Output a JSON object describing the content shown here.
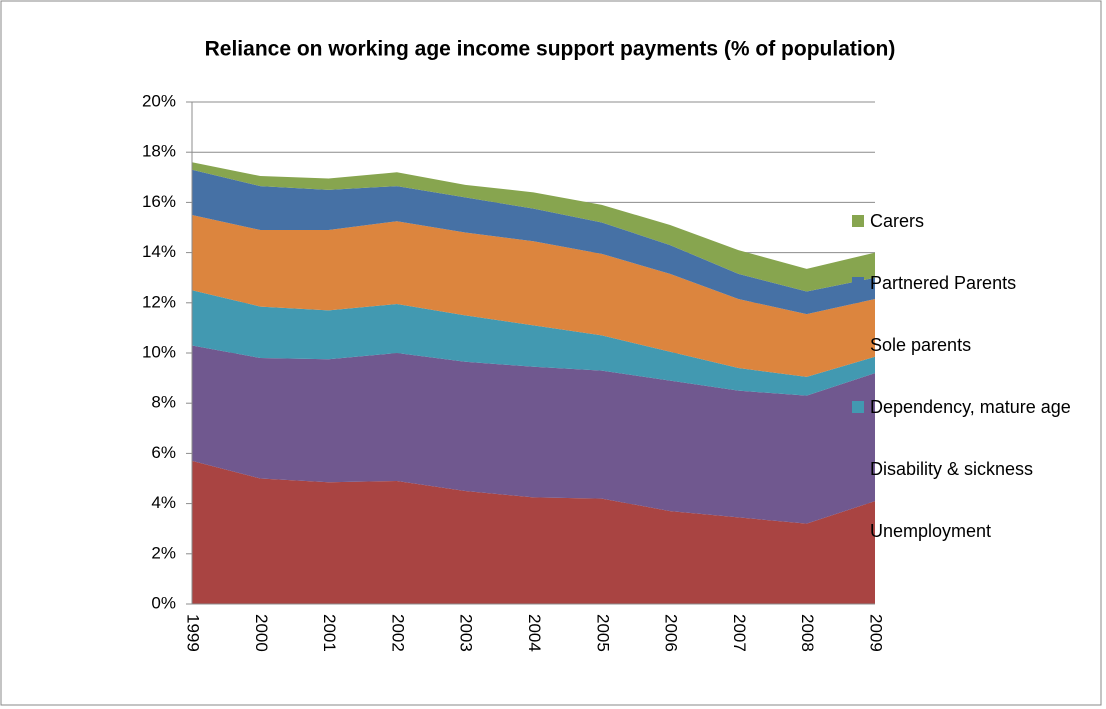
{
  "chart_data": {
    "type": "stacked-area",
    "title": "Reliance on working age income support payments (% of population)",
    "categories": [
      "1999",
      "2000",
      "2001",
      "2002",
      "2003",
      "2004",
      "2005",
      "2006",
      "2007",
      "2008",
      "2009"
    ],
    "series": [
      {
        "name": "Unemployment",
        "color": "#a94442",
        "values": [
          5.7,
          5.0,
          4.85,
          4.9,
          4.5,
          4.25,
          4.2,
          3.7,
          3.45,
          3.2,
          4.1
        ]
      },
      {
        "name": "Disability & sickness",
        "color": "#70588f",
        "values": [
          4.6,
          4.8,
          4.9,
          5.1,
          5.15,
          5.2,
          5.1,
          5.2,
          5.05,
          5.1,
          5.1
        ]
      },
      {
        "name": "Dependency, mature age",
        "color": "#4299b1",
        "values": [
          2.2,
          2.05,
          1.95,
          1.95,
          1.85,
          1.65,
          1.4,
          1.15,
          0.9,
          0.75,
          0.65
        ]
      },
      {
        "name": "Sole parents",
        "color": "#dc853e",
        "values": [
          3.0,
          3.05,
          3.2,
          3.3,
          3.3,
          3.35,
          3.25,
          3.1,
          2.75,
          2.5,
          2.3
        ]
      },
      {
        "name": "Partnered Parents",
        "color": "#4671a5",
        "values": [
          1.8,
          1.75,
          1.6,
          1.4,
          1.4,
          1.3,
          1.25,
          1.15,
          1.0,
          0.9,
          0.85
        ]
      },
      {
        "name": "Carers",
        "color": "#87a54f",
        "values": [
          0.3,
          0.4,
          0.45,
          0.55,
          0.5,
          0.65,
          0.7,
          0.8,
          0.95,
          0.9,
          1.0
        ]
      }
    ],
    "ylim": [
      0,
      20
    ],
    "yticks": [
      {
        "value": 0,
        "label": "0%"
      },
      {
        "value": 2,
        "label": "2%"
      },
      {
        "value": 4,
        "label": "4%"
      },
      {
        "value": 6,
        "label": "6%"
      },
      {
        "value": 8,
        "label": "8%"
      },
      {
        "value": 10,
        "label": "10%"
      },
      {
        "value": 12,
        "label": "12%"
      },
      {
        "value": 14,
        "label": "14%"
      },
      {
        "value": 16,
        "label": "16%"
      },
      {
        "value": 18,
        "label": "18%"
      },
      {
        "value": 20,
        "label": "20%"
      }
    ],
    "grid": true,
    "legend": "right"
  }
}
